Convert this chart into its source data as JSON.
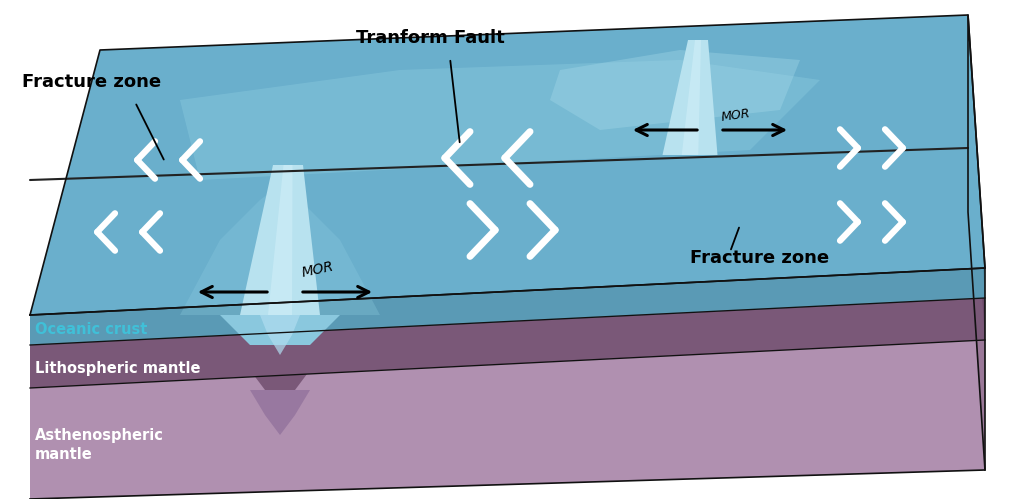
{
  "bg_color": "#ffffff",
  "top_surface_color": "#6aafcc",
  "top_surface_light": "#8dcce0",
  "top_surface_highlight": "#a8dcea",
  "ridge_light": "#b8e2ef",
  "oceanic_front_color": "#5a9ab5",
  "oceanic_right_color": "#4a8aa5",
  "litho_front_color": "#7a5878",
  "litho_right_color": "#6a4868",
  "litho_dark_color": "#5a3858",
  "asthen_front_color": "#b090b0",
  "asthen_right_color": "#9a7898",
  "asthen_body_color": "#b898b8",
  "fault_line_color": "#222222",
  "outline_color": "#111111",
  "label_fracture_zone": "Fracture zone",
  "label_transform_fault": "Tranform Fault",
  "label_oceanic_crust": "Oceanic crust",
  "label_lithospheric": "Lithospheric mantle",
  "label_asthenosphere": "Asthenospheric\nmantle",
  "label_mor": "MOR",
  "white_arrow_color": "#ffffff",
  "black_arrow_color": "#111111",
  "text_color_dark": "#111111",
  "text_color_white": "#ffffff",
  "text_color_cyan": "#40c0d8"
}
